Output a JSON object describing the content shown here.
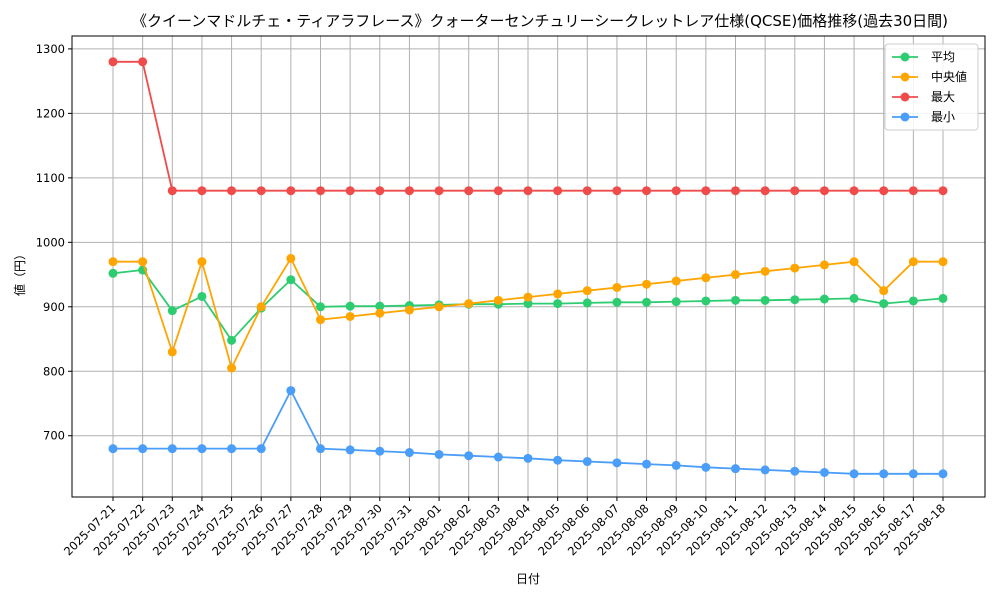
{
  "chart_data": {
    "type": "line",
    "title": "《クイーンマドルチェ・ティアラフレース》クォーターセンチュリーシークレットレア仕様(QCSE)価格推移(過去30日間)",
    "xlabel": "日付",
    "ylabel": "値（円）",
    "ylim": [
      605,
      1320
    ],
    "yticks": [
      700,
      800,
      900,
      1000,
      1100,
      1200,
      1300
    ],
    "grid": true,
    "legend_position": "top-right",
    "categories": [
      "2025-07-21",
      "2025-07-22",
      "2025-07-23",
      "2025-07-24",
      "2025-07-25",
      "2025-07-26",
      "2025-07-27",
      "2025-07-28",
      "2025-07-29",
      "2025-07-30",
      "2025-07-31",
      "2025-08-01",
      "2025-08-02",
      "2025-08-03",
      "2025-08-04",
      "2025-08-05",
      "2025-08-06",
      "2025-08-07",
      "2025-08-08",
      "2025-08-09",
      "2025-08-10",
      "2025-08-11",
      "2025-08-12",
      "2025-08-13",
      "2025-08-14",
      "2025-08-15",
      "2025-08-16",
      "2025-08-17",
      "2025-08-18"
    ],
    "series": [
      {
        "name": "平均",
        "color": "#2ecc71",
        "values": [
          952,
          957,
          894,
          916,
          848,
          898,
          942,
          900,
          901,
          901,
          902,
          903,
          904,
          904,
          905,
          905,
          906,
          907,
          907,
          908,
          909,
          910,
          910,
          911,
          912,
          913,
          905,
          909,
          913
        ]
      },
      {
        "name": "中央値",
        "color": "#ffa500",
        "values": [
          970,
          970,
          830,
          970,
          805,
          900,
          975,
          880,
          885,
          890,
          895,
          900,
          905,
          910,
          915,
          920,
          925,
          930,
          935,
          940,
          945,
          950,
          955,
          960,
          965,
          970,
          925,
          970,
          970
        ]
      },
      {
        "name": "最大",
        "color": "#f04b4b",
        "values": [
          1280,
          1280,
          1080,
          1080,
          1080,
          1080,
          1080,
          1080,
          1080,
          1080,
          1080,
          1080,
          1080,
          1080,
          1080,
          1080,
          1080,
          1080,
          1080,
          1080,
          1080,
          1080,
          1080,
          1080,
          1080,
          1080,
          1080,
          1080,
          1080
        ]
      },
      {
        "name": "最小",
        "color": "#4a9df8",
        "values": [
          680,
          680,
          680,
          680,
          680,
          680,
          770,
          680,
          678,
          676,
          674,
          671,
          669,
          667,
          665,
          662,
          660,
          658,
          656,
          654,
          651,
          649,
          647,
          645,
          643,
          641,
          641,
          641,
          641
        ]
      }
    ]
  }
}
